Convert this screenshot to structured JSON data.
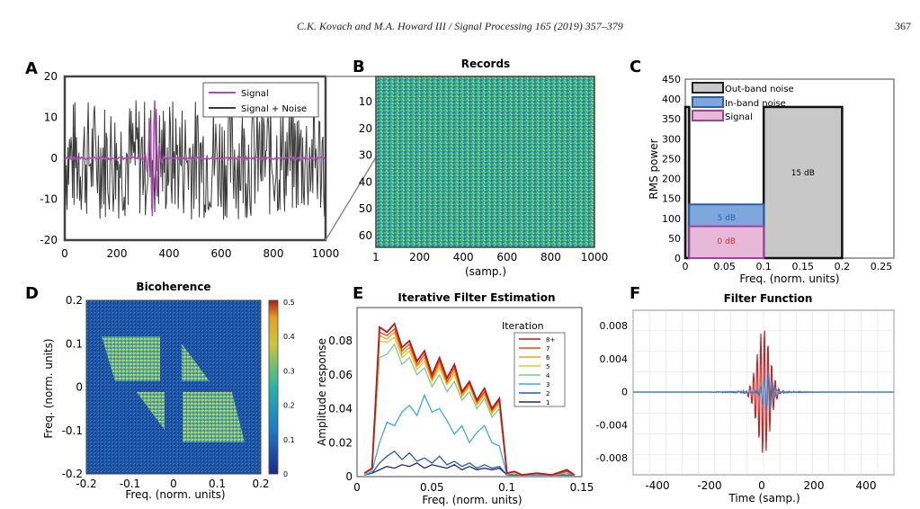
{
  "header": {
    "citation": "C.K. Kovach and M.A. Howard III / Signal Processing 165 (2019) 357–379",
    "page_number": "367"
  },
  "colors": {
    "signal": "#b04db4",
    "noise": "#3a3a3a",
    "out_band": "#c8c8c8",
    "in_band": "#7ea8dd",
    "signal_box": "#e8b8d8"
  },
  "panels": {
    "A": {
      "letter": "A",
      "title": "",
      "yticks": [
        "20",
        "10",
        "0",
        "-10",
        "-20"
      ],
      "xticks": [
        "0",
        "200",
        "400",
        "600",
        "800",
        "1000"
      ],
      "legend": [
        "Signal",
        "Signal + Noise"
      ]
    },
    "B": {
      "letter": "B",
      "title": "Records",
      "yticks": [
        "10",
        "20",
        "30",
        "40",
        "50",
        "60"
      ],
      "xticks": [
        "1",
        "200",
        "400",
        "600",
        "800",
        "1000"
      ],
      "xlabel": "(samp.)"
    },
    "C": {
      "letter": "C",
      "title": "",
      "yticks": [
        "450",
        "400",
        "350",
        "300",
        "250",
        "200",
        "150",
        "100",
        "50",
        "0"
      ],
      "xticks": [
        "0",
        "0.05",
        "0.1",
        "0.15",
        "0.2",
        "0.25"
      ],
      "xlabel": "Freq. (norm. units)",
      "ylabel": "RMS power",
      "legend": [
        "Out-band noise",
        "In-band noise",
        "Signal"
      ],
      "box_labels": [
        "15 dB",
        "5 dB",
        "0 dB"
      ]
    },
    "D": {
      "letter": "D",
      "title": "Bicoherence",
      "yticks": [
        "0.2",
        "0.1",
        "0",
        "-0.1",
        "-0.2"
      ],
      "xticks": [
        "-0.2",
        "-0.1",
        "0",
        "0.1",
        "0.2"
      ],
      "xlabel": "Freq. (norm. units)",
      "ylabel": "Freq. (norm. units)",
      "cbar_ticks": [
        "0.5",
        "0.4",
        "0.3",
        "0.2",
        "0.1",
        "0"
      ]
    },
    "E": {
      "letter": "E",
      "title": "Iterative Filter Estimation",
      "yticks": [
        "0.08",
        "0.06",
        "0.04",
        "0.02",
        "0"
      ],
      "xticks": [
        "0",
        "0.05",
        "0.1",
        "0.15"
      ],
      "xlabel": "Freq. (norm. units)",
      "ylabel": "Amplitude response",
      "legend_title": "Iteration",
      "legend": [
        "8+",
        "7",
        "6",
        "5",
        "4",
        "3",
        "2",
        "1"
      ]
    },
    "F": {
      "letter": "F",
      "title": "Filter Function",
      "yticks": [
        "0.008",
        "0.004",
        "0",
        "-0.004",
        "-0.008"
      ],
      "xticks": [
        "-400",
        "-200",
        "0",
        "200",
        "400"
      ],
      "xlabel": "Time (samp.)"
    }
  },
  "chart_data": [
    {
      "type": "line",
      "panel": "A",
      "x_range": [
        0,
        1000
      ],
      "ylim": [
        -20,
        20
      ],
      "series": [
        {
          "name": "Signal",
          "peak_at": 340,
          "peak_amplitude": 15
        },
        {
          "name": "Signal + Noise",
          "amplitude_range": [
            -18,
            18
          ]
        }
      ]
    },
    {
      "type": "heatmap",
      "panel": "B",
      "title": "Records",
      "x_range": [
        1,
        1000
      ],
      "y_range": [
        1,
        64
      ],
      "xlabel": "(samp.)"
    },
    {
      "type": "bar",
      "panel": "C",
      "xlabel": "Freq. (norm. units)",
      "ylabel": "RMS power",
      "ylim": [
        0,
        450
      ],
      "xlim": [
        0,
        0.25
      ],
      "series": [
        {
          "name": "Out-band noise",
          "bands": [
            [
              0,
              0.005
            ],
            [
              0.1,
              0.2
            ]
          ],
          "value": 380,
          "label": "15 dB"
        },
        {
          "name": "In-band noise",
          "band": [
            0.005,
            0.1
          ],
          "value": 135,
          "label": "5 dB"
        },
        {
          "name": "Signal",
          "band": [
            0.005,
            0.1
          ],
          "value": 80,
          "label": "0 dB"
        }
      ]
    },
    {
      "type": "heatmap",
      "panel": "D",
      "title": "Bicoherence",
      "x_range": [
        -0.2,
        0.2
      ],
      "y_range": [
        -0.2,
        0.2
      ],
      "color_range": [
        0,
        0.5
      ]
    },
    {
      "type": "line",
      "panel": "E",
      "title": "Iterative Filter Estimation",
      "xlim": [
        0,
        0.15
      ],
      "ylim": [
        0,
        0.09
      ],
      "x": [
        0.005,
        0.01,
        0.015,
        0.02,
        0.025,
        0.03,
        0.035,
        0.04,
        0.045,
        0.05,
        0.055,
        0.06,
        0.065,
        0.07,
        0.075,
        0.08,
        0.085,
        0.09,
        0.095,
        0.1,
        0.105,
        0.11,
        0.12,
        0.13,
        0.14,
        0.145
      ],
      "series": [
        {
          "name": "8+",
          "values": [
            0.002,
            0.005,
            0.088,
            0.085,
            0.09,
            0.076,
            0.08,
            0.068,
            0.074,
            0.06,
            0.07,
            0.058,
            0.066,
            0.05,
            0.056,
            0.045,
            0.052,
            0.04,
            0.046,
            0.002,
            0.003,
            0.001,
            0.002,
            0.001,
            0.004,
            0.001
          ]
        },
        {
          "name": "7",
          "values": [
            0.002,
            0.005,
            0.085,
            0.083,
            0.087,
            0.074,
            0.078,
            0.066,
            0.072,
            0.058,
            0.068,
            0.056,
            0.064,
            0.049,
            0.055,
            0.044,
            0.05,
            0.039,
            0.045,
            0.002,
            0.003,
            0.001,
            0.002,
            0.001,
            0.003,
            0.001
          ]
        },
        {
          "name": "6",
          "values": [
            0.002,
            0.005,
            0.083,
            0.081,
            0.085,
            0.072,
            0.076,
            0.065,
            0.07,
            0.057,
            0.066,
            0.055,
            0.062,
            0.048,
            0.054,
            0.043,
            0.049,
            0.038,
            0.044,
            0.002,
            0.003,
            0.001,
            0.002,
            0.001,
            0.003,
            0.001
          ]
        },
        {
          "name": "5",
          "values": [
            0.002,
            0.004,
            0.08,
            0.079,
            0.082,
            0.07,
            0.074,
            0.063,
            0.068,
            0.056,
            0.064,
            0.054,
            0.06,
            0.047,
            0.053,
            0.042,
            0.048,
            0.037,
            0.043,
            0.002,
            0.002,
            0.001,
            0.002,
            0.001,
            0.003,
            0.001
          ]
        },
        {
          "name": "4",
          "values": [
            0.002,
            0.004,
            0.07,
            0.072,
            0.078,
            0.066,
            0.07,
            0.06,
            0.064,
            0.053,
            0.06,
            0.05,
            0.056,
            0.045,
            0.05,
            0.04,
            0.046,
            0.035,
            0.04,
            0.002,
            0.002,
            0.001,
            0.002,
            0.001,
            0.002,
            0.001
          ]
        },
        {
          "name": "3",
          "values": [
            0.001,
            0.003,
            0.02,
            0.032,
            0.03,
            0.038,
            0.042,
            0.036,
            0.048,
            0.038,
            0.04,
            0.033,
            0.025,
            0.03,
            0.02,
            0.026,
            0.03,
            0.02,
            0.018,
            0.001,
            0.002,
            0.001,
            0.001,
            0.001,
            0.002,
            0.001
          ]
        },
        {
          "name": "2",
          "values": [
            0.001,
            0.002,
            0.008,
            0.012,
            0.015,
            0.01,
            0.014,
            0.009,
            0.011,
            0.008,
            0.012,
            0.007,
            0.009,
            0.006,
            0.008,
            0.005,
            0.007,
            0.005,
            0.006,
            0.001,
            0.001,
            0.001,
            0.001,
            0.001,
            0.001,
            0.001
          ]
        },
        {
          "name": "1",
          "values": [
            0.001,
            0.002,
            0.004,
            0.006,
            0.005,
            0.007,
            0.006,
            0.008,
            0.005,
            0.007,
            0.006,
            0.005,
            0.007,
            0.004,
            0.006,
            0.004,
            0.005,
            0.004,
            0.005,
            0.001,
            0.001,
            0.001,
            0.001,
            0.001,
            0.001,
            0.001
          ]
        }
      ]
    },
    {
      "type": "line",
      "panel": "F",
      "title": "Filter Function",
      "xlim": [
        -500,
        500
      ],
      "ylim": [
        -0.009,
        0.009
      ],
      "xlabel": "Time (samp.)"
    }
  ]
}
